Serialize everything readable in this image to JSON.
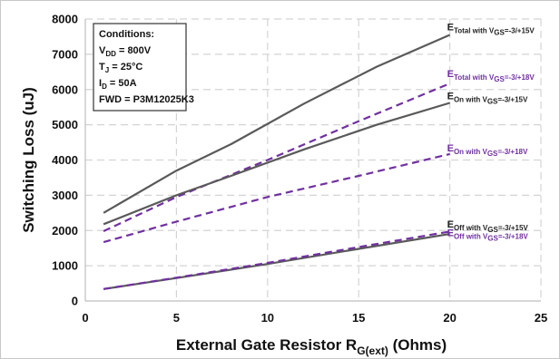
{
  "chart_data": {
    "type": "line",
    "title": "",
    "xlabel": {
      "main": "External Gate Resistor R",
      "sub": "G(ext)",
      "tail": " (Ohms)"
    },
    "ylabel": "Switching Loss (uJ)",
    "xlim": [
      0,
      25
    ],
    "ylim": [
      0,
      8000
    ],
    "xticks": [
      0,
      5,
      10,
      15,
      20,
      25
    ],
    "yticks": [
      0,
      1000,
      2000,
      3000,
      4000,
      5000,
      6000,
      7000,
      8000
    ],
    "grid": true,
    "legend": "direct labels at line ends",
    "conditions": [
      {
        "main": "Conditions:"
      },
      {
        "main": "V",
        "sub": "DD",
        "tail": " = 800V"
      },
      {
        "main": "T",
        "sub": "J",
        "tail": " = 25°C"
      },
      {
        "main": "I",
        "sub": "D",
        "tail": " = 50A"
      },
      {
        "main": "FWD = P3M12025K3"
      }
    ],
    "series": [
      {
        "label_main": "E",
        "label_sub": "Total with V",
        "label_sub2": "GS",
        "label_tail": "=-3/+15V",
        "color": "#595959",
        "dashed": false,
        "x": [
          1,
          5,
          8,
          12,
          16,
          20
        ],
        "y": [
          2500,
          3700,
          4450,
          5600,
          6650,
          7550
        ]
      },
      {
        "label_main": "E",
        "label_sub": "Total with V",
        "label_sub2": "GS",
        "label_tail": "=-3/+18V",
        "color": "#7030a0",
        "dashed": true,
        "x": [
          1,
          5,
          10,
          15,
          20
        ],
        "y": [
          1980,
          2950,
          4000,
          5100,
          6170
        ]
      },
      {
        "label_main": "E",
        "label_sub": "On with V",
        "label_sub2": "GS",
        "label_tail": "=-3/+15V",
        "color": "#595959",
        "dashed": false,
        "x": [
          1,
          5,
          8,
          12,
          16,
          20
        ],
        "y": [
          2180,
          3000,
          3550,
          4300,
          5000,
          5620
        ]
      },
      {
        "label_main": "E",
        "label_sub": "On with V",
        "label_sub2": "GS",
        "label_tail": "=-3/+18V",
        "color": "#7030a0",
        "dashed": true,
        "x": [
          1,
          5,
          10,
          15,
          20
        ],
        "y": [
          1670,
          2250,
          2950,
          3550,
          4170
        ]
      },
      {
        "label_main": "E",
        "label_sub": "Off with V",
        "label_sub2": "GS",
        "label_tail": "=-3/+15V",
        "color": "#595959",
        "dashed": false,
        "x": [
          1,
          5,
          10,
          15,
          20
        ],
        "y": [
          340,
          650,
          1050,
          1480,
          1900
        ]
      },
      {
        "label_main": "E",
        "label_sub": "Off with V",
        "label_sub2": "GS",
        "label_tail": "=-3/+18V",
        "color": "#7030a0",
        "dashed": true,
        "x": [
          1,
          5,
          10,
          15,
          20
        ],
        "y": [
          340,
          660,
          1080,
          1530,
          1970
        ]
      }
    ]
  }
}
